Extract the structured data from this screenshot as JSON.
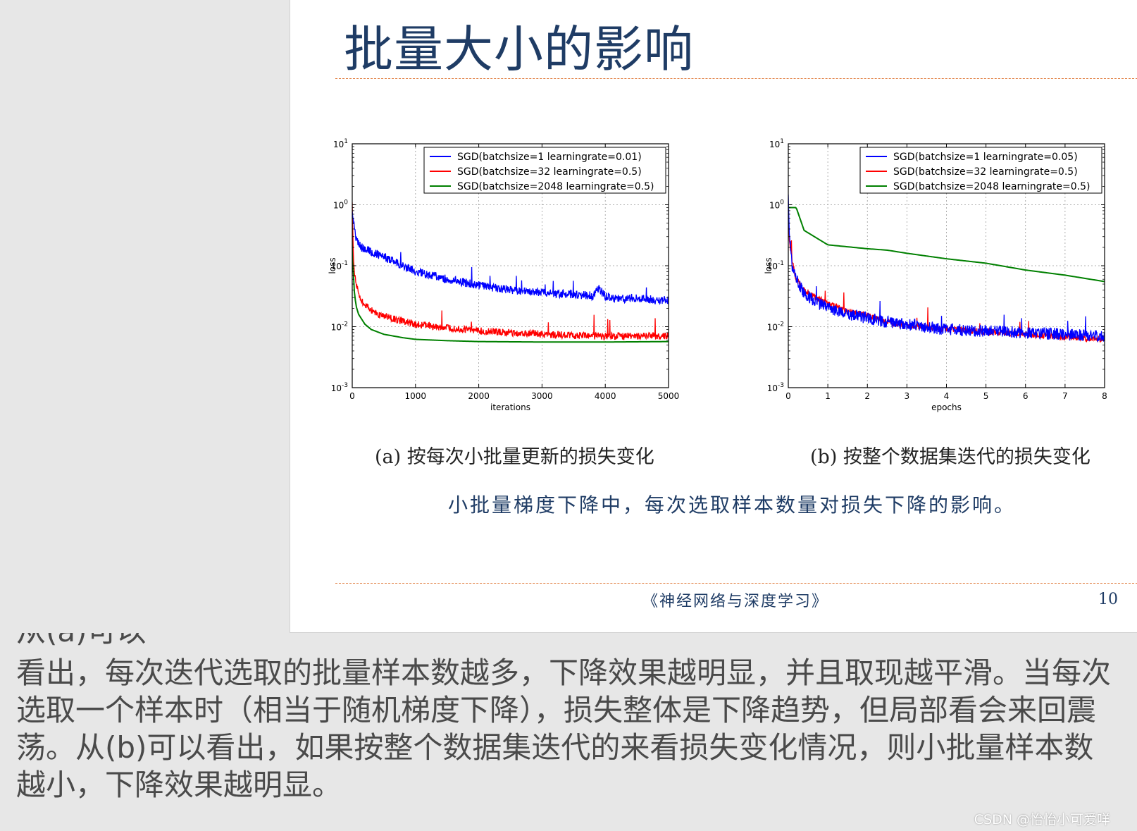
{
  "slide": {
    "title": "批量大小的影响",
    "caption_a": "(a) 按每次小批量更新的损失变化",
    "caption_b": "(b) 按整个数据集迭代的损失变化",
    "figure_note": "小批量梯度下降中，每次选取样本数量对损失下降的影响。",
    "footer_book": "《神经网络与深度学习》",
    "page_number": "10"
  },
  "description": {
    "clipped_line": "从(a)可以",
    "text": "看出，每次迭代选取的批量样本数越多，下降效果越明显，并且取现越平滑。当每次选取一个样本时（相当于随机梯度下降），损失整体是下降趋势，但局部看会来回震荡。从(b)可以看出，如果按整个数据集迭代的来看损失变化情况，则小批量样本数越小，下降效果越明显。"
  },
  "watermark": "CSDN @怡怡小可爱咩",
  "chart_data": [
    {
      "type": "line",
      "title": "",
      "xlabel": "iterations",
      "ylabel": "loss",
      "xlim": [
        0,
        5000
      ],
      "ylim": [
        0.001,
        10
      ],
      "yscale": "log",
      "grid": true,
      "legend_position": "top-right",
      "x_ticks": [
        "0",
        "1000",
        "2000",
        "3000",
        "4000",
        "5000"
      ],
      "y_ticks": [
        {
          "base": "10",
          "exp": "1"
        },
        {
          "base": "10",
          "exp": "0"
        },
        {
          "base": "10",
          "exp": "-1"
        },
        {
          "base": "10",
          "exp": "-2"
        },
        {
          "base": "10",
          "exp": "-3"
        }
      ],
      "series": [
        {
          "name": "SGD(batchsize=1 learningrate=0.01)",
          "color": "#0000ff",
          "noise": 0.07,
          "x": [
            0,
            20,
            60,
            150,
            300,
            500,
            800,
            1000,
            1500,
            2000,
            2500,
            3000,
            3500,
            3800,
            3900,
            4000,
            4200,
            4500,
            4800,
            5000
          ],
          "y": [
            0.9,
            0.55,
            0.28,
            0.2,
            0.17,
            0.14,
            0.1,
            0.08,
            0.06,
            0.048,
            0.04,
            0.036,
            0.034,
            0.032,
            0.042,
            0.032,
            0.028,
            0.03,
            0.027,
            0.027
          ]
        },
        {
          "name": "SGD(batchsize=32 learningrate=0.5)",
          "color": "#ff0000",
          "noise": 0.06,
          "x": [
            0,
            10,
            30,
            60,
            100,
            200,
            400,
            700,
            1000,
            1500,
            2000,
            2500,
            3000,
            3500,
            4000,
            4500,
            5000
          ],
          "y": [
            1.2,
            0.3,
            0.08,
            0.05,
            0.035,
            0.022,
            0.016,
            0.013,
            0.011,
            0.0095,
            0.0085,
            0.008,
            0.0075,
            0.0072,
            0.007,
            0.007,
            0.007
          ]
        },
        {
          "name": "SGD(batchsize=2048 learningrate=0.5)",
          "color": "#008000",
          "noise": 0,
          "x": [
            0,
            10,
            30,
            60,
            100,
            200,
            300,
            500,
            800,
            1000,
            1500,
            2000,
            3000,
            4000,
            5000
          ],
          "y": [
            0.5,
            0.12,
            0.04,
            0.022,
            0.016,
            0.011,
            0.009,
            0.0075,
            0.0066,
            0.0062,
            0.0059,
            0.0057,
            0.0056,
            0.0056,
            0.0057
          ]
        }
      ]
    },
    {
      "type": "line",
      "title": "",
      "xlabel": "epochs",
      "ylabel": "loss",
      "xlim": [
        0,
        8
      ],
      "ylim": [
        0.001,
        10
      ],
      "yscale": "log",
      "grid": true,
      "legend_position": "top-right",
      "x_ticks": [
        "0",
        "1",
        "2",
        "3",
        "4",
        "5",
        "6",
        "7",
        "8"
      ],
      "y_ticks": [
        {
          "base": "10",
          "exp": "1"
        },
        {
          "base": "10",
          "exp": "0"
        },
        {
          "base": "10",
          "exp": "-1"
        },
        {
          "base": "10",
          "exp": "-2"
        },
        {
          "base": "10",
          "exp": "-3"
        }
      ],
      "series": [
        {
          "name": "SGD(batchsize=1 learningrate=0.05)",
          "color": "#0000ff",
          "noise": 0.1,
          "x": [
            0,
            0.03,
            0.1,
            0.2,
            0.4,
            0.7,
            1,
            1.5,
            2,
            2.5,
            3,
            4,
            5,
            6,
            7,
            8
          ],
          "y": [
            1.4,
            0.3,
            0.1,
            0.06,
            0.035,
            0.025,
            0.02,
            0.016,
            0.014,
            0.012,
            0.011,
            0.009,
            0.0085,
            0.008,
            0.0075,
            0.007
          ]
        },
        {
          "name": "SGD(batchsize=32 learningrate=0.5)",
          "color": "#ff0000",
          "noise": 0.05,
          "x": [
            0,
            0.03,
            0.1,
            0.2,
            0.4,
            0.7,
            1,
            1.5,
            2,
            2.5,
            3,
            4,
            5,
            6,
            7,
            8
          ],
          "y": [
            0.8,
            0.25,
            0.12,
            0.06,
            0.04,
            0.03,
            0.024,
            0.018,
            0.015,
            0.012,
            0.0105,
            0.0092,
            0.0083,
            0.0075,
            0.0068,
            0.0062
          ]
        },
        {
          "name": "SGD(batchsize=2048 learningrate=0.5)",
          "color": "#008000",
          "noise": 0,
          "x": [
            0,
            0.2,
            0.4,
            1,
            2,
            2.5,
            3,
            4,
            5,
            6,
            7,
            8
          ],
          "y": [
            0.9,
            0.9,
            0.38,
            0.22,
            0.19,
            0.18,
            0.16,
            0.13,
            0.11,
            0.085,
            0.07,
            0.055
          ]
        }
      ]
    }
  ]
}
